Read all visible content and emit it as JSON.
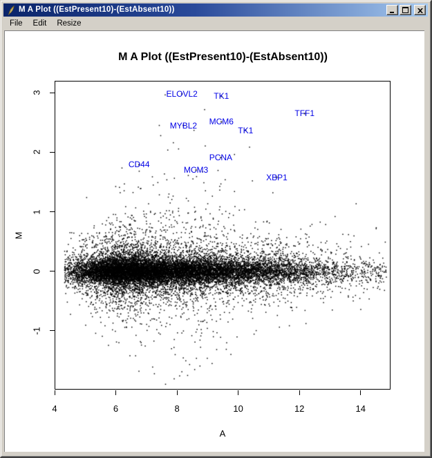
{
  "window": {
    "title": "M A Plot ((EstPresent10)-(EstAbsent10))",
    "icon": "feather-icon",
    "menu": [
      "File",
      "Edit",
      "Resize"
    ]
  },
  "colors": {
    "titlebar_start": "#0a246a",
    "titlebar_end": "#a6caf0",
    "chrome_gray": "#d4d0c8",
    "gene_label_blue": "#0000e6",
    "point_black": "#000000",
    "plot_background": "#ffffff"
  },
  "chart_data": {
    "type": "scatter",
    "title": "M A Plot ((EstPresent10)-(EstAbsent10))",
    "xlabel": "A",
    "ylabel": "M",
    "xlim": [
      4,
      15
    ],
    "ylim": [
      -2,
      3.2
    ],
    "xticks": [
      4,
      6,
      8,
      10,
      12,
      14
    ],
    "yticks": [
      -1,
      0,
      1,
      2,
      3
    ],
    "grid": false,
    "legend": false,
    "gene_labels": [
      {
        "name": "ELOVL2",
        "A": 8.16,
        "M": 2.98
      },
      {
        "name": "TK1",
        "A": 9.45,
        "M": 2.94
      },
      {
        "name": "TFF1",
        "A": 12.17,
        "M": 2.65
      },
      {
        "name": "MCM6",
        "A": 9.45,
        "M": 2.51
      },
      {
        "name": "MYBL2",
        "A": 8.21,
        "M": 2.45
      },
      {
        "name": "TK1",
        "A": 10.24,
        "M": 2.37
      },
      {
        "name": "PCNA",
        "A": 9.43,
        "M": 1.91
      },
      {
        "name": "CD44",
        "A": 6.76,
        "M": 1.79
      },
      {
        "name": "MCM3",
        "A": 8.62,
        "M": 1.7
      },
      {
        "name": "XBP1",
        "A": 11.26,
        "M": 1.58
      }
    ],
    "point_cloud": {
      "description": "dense MA-plot cloud of ~16000 probes centered on M=0, A from 4.3 to 14.85, heaviest between A=5 and A=10, upward outliers to M=3 around A=6-11, sparse tight band to A=14.85",
      "n": 16000,
      "seed": 11,
      "x_range": [
        4.32,
        14.85
      ],
      "y_range": [
        -1.92,
        3.06
      ],
      "x_components": [
        {
          "w": 0.38,
          "mean": 6.1,
          "sd": 0.78
        },
        {
          "w": 0.28,
          "mean": 7.7,
          "sd": 1.05
        },
        {
          "w": 0.21,
          "mean": 9.3,
          "sd": 1.35
        },
        {
          "w": 0.1,
          "mean": 10.9,
          "sd": 1.35
        },
        {
          "w": 0.03,
          "uniform": [
            11.2,
            14.85
          ]
        }
      ],
      "y_components": [
        {
          "w": 0.57,
          "sd": 0.1
        },
        {
          "w": 0.24,
          "sd": 0.2
        },
        {
          "w": 0.12,
          "sd": 0.35
        },
        {
          "w": 0.055,
          "sd": 0.6,
          "bump": 1
        },
        {
          "w": 0.015,
          "tail": 1
        }
      ],
      "bump_center": 8.3,
      "bump_width": 9,
      "bump_floor": 0.15,
      "tail_base": 0.3,
      "tail_scale_min": 0.12,
      "tail_scale": 1.0,
      "tail_pos_prob": 0.58,
      "down_shrink": 0.8
    }
  }
}
